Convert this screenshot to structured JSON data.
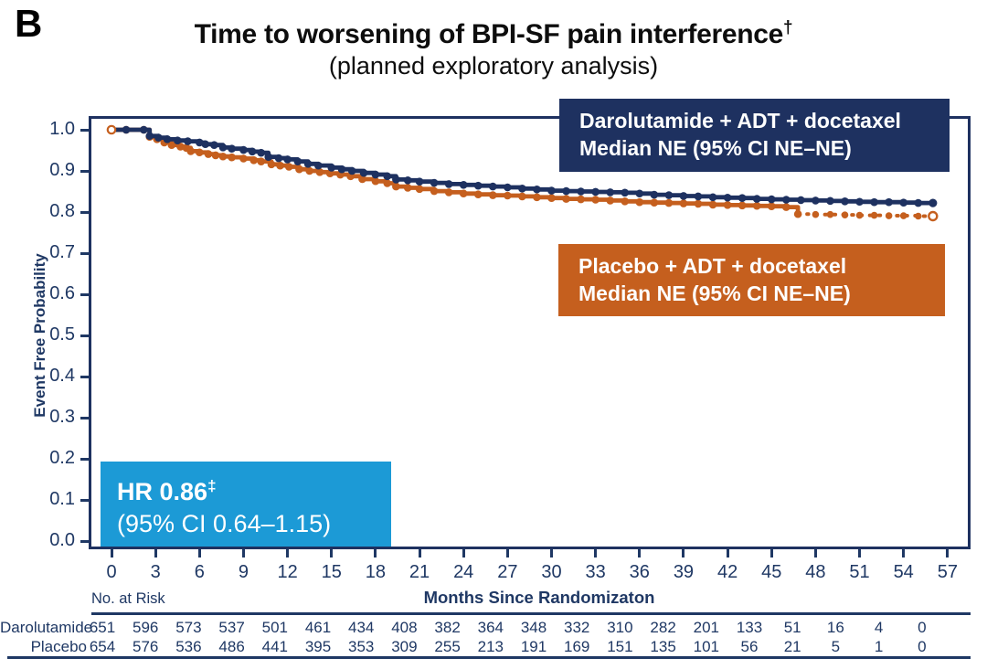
{
  "panel_label": "B",
  "header": {
    "title": "Time to worsening of BPI-SF pain interference",
    "title_sup": "†",
    "subtitle": "(planned exploratory analysis)"
  },
  "colors": {
    "navy": "#1e3160",
    "orange": "#c55f1e",
    "sky_blue": "#1c9ad6",
    "axis_text": "#1f3864",
    "background": "#ffffff"
  },
  "y_axis": {
    "label": "Event Free Probability",
    "ticks": [
      "1.0",
      "0.9",
      "0.8",
      "0.7",
      "0.6",
      "0.5",
      "0.4",
      "0.3",
      "0.2",
      "0.1",
      "0.0"
    ]
  },
  "x_axis": {
    "label": "Months Since Randomizaton",
    "ticks": [
      0,
      3,
      6,
      9,
      12,
      15,
      18,
      21,
      24,
      27,
      30,
      33,
      36,
      39,
      42,
      45,
      48,
      51,
      54,
      57
    ]
  },
  "legends": {
    "daro": {
      "line1": "Darolutamide + ADT + docetaxel",
      "line2": "Median NE (95% CI NE–NE)"
    },
    "placebo": {
      "line1": "Placebo + ADT + docetaxel",
      "line2": "Median NE (95% CI NE–NE)"
    }
  },
  "hr_box": {
    "line1": "HR 0.86",
    "line1_sup": "‡",
    "line2": "(95% CI 0.64–1.15)"
  },
  "risk_table": {
    "caption": "No. at Risk",
    "months": [
      0,
      3,
      6,
      9,
      12,
      15,
      18,
      21,
      24,
      27,
      30,
      33,
      36,
      39,
      42,
      45,
      48,
      51,
      54,
      57
    ],
    "rows": [
      {
        "label": "Darolutamide",
        "values": [
          651,
          596,
          573,
          537,
          501,
          461,
          434,
          408,
          382,
          364,
          348,
          332,
          310,
          282,
          201,
          133,
          51,
          16,
          4,
          0
        ]
      },
      {
        "label": "Placebo",
        "values": [
          654,
          576,
          536,
          486,
          441,
          395,
          353,
          309,
          255,
          213,
          191,
          169,
          151,
          135,
          101,
          56,
          21,
          5,
          1,
          0
        ]
      }
    ]
  },
  "chart_data": {
    "type": "line",
    "subtype": "kaplan-meier-step",
    "title": "Time to worsening of BPI-SF pain interference† (planned exploratory analysis)",
    "xlabel": "Months Since Randomizaton",
    "ylabel": "Event Free Probability",
    "xlim": [
      0,
      58.5
    ],
    "ylim": [
      0.0,
      1.0
    ],
    "grid": false,
    "hazard_ratio": "0.86",
    "hazard_ratio_ci": "0.64–1.15",
    "series": [
      {
        "name": "Darolutamide + ADT + docetaxel",
        "color": "#1e3160",
        "median": "NE",
        "median_ci": "NE–NE",
        "line_style": "solid",
        "end_marker": "filled",
        "points": [
          [
            0,
            1
          ],
          [
            1,
            1
          ],
          [
            2.2,
            1
          ],
          [
            2.6,
            0.985
          ],
          [
            3.2,
            0.981
          ],
          [
            3.8,
            0.977
          ],
          [
            4.5,
            0.974
          ],
          [
            5.2,
            0.972
          ],
          [
            6,
            0.969
          ],
          [
            6.4,
            0.965
          ],
          [
            7,
            0.963
          ],
          [
            7.6,
            0.957
          ],
          [
            8.2,
            0.954
          ],
          [
            9,
            0.951
          ],
          [
            9.6,
            0.947
          ],
          [
            10.2,
            0.944
          ],
          [
            10.7,
            0.934
          ],
          [
            11.4,
            0.931
          ],
          [
            12,
            0.928
          ],
          [
            12.7,
            0.923
          ],
          [
            13.4,
            0.917
          ],
          [
            14.1,
            0.913
          ],
          [
            15,
            0.908
          ],
          [
            15.7,
            0.904
          ],
          [
            16.4,
            0.9
          ],
          [
            17.2,
            0.895
          ],
          [
            18,
            0.891
          ],
          [
            18.8,
            0.887
          ],
          [
            19.4,
            0.879
          ],
          [
            20.2,
            0.877
          ],
          [
            21,
            0.874
          ],
          [
            22,
            0.871
          ],
          [
            23,
            0.868
          ],
          [
            24,
            0.866
          ],
          [
            25,
            0.864
          ],
          [
            26,
            0.862
          ],
          [
            27,
            0.86
          ],
          [
            28,
            0.857
          ],
          [
            29,
            0.855
          ],
          [
            30,
            0.852
          ],
          [
            31,
            0.851
          ],
          [
            32,
            0.85
          ],
          [
            33,
            0.849
          ],
          [
            34,
            0.848
          ],
          [
            35,
            0.847
          ],
          [
            36,
            0.845
          ],
          [
            37,
            0.842
          ],
          [
            38,
            0.841
          ],
          [
            39,
            0.839
          ],
          [
            40,
            0.838
          ],
          [
            41,
            0.836
          ],
          [
            42,
            0.835
          ],
          [
            43,
            0.834
          ],
          [
            44,
            0.832
          ],
          [
            45,
            0.831
          ],
          [
            46,
            0.83
          ],
          [
            47,
            0.829
          ],
          [
            48,
            0.828
          ],
          [
            49,
            0.827
          ],
          [
            50,
            0.826
          ],
          [
            51,
            0.825
          ],
          [
            52,
            0.824
          ],
          [
            53,
            0.824
          ],
          [
            54,
            0.823
          ],
          [
            55,
            0.822
          ],
          [
            56,
            0.822
          ]
        ]
      },
      {
        "name": "Placebo + ADT + docetaxel",
        "color": "#c55f1e",
        "median": "NE",
        "median_ci": "NE–NE",
        "line_style": "solid-then-dashed",
        "dashed_from": 46.8,
        "start_marker": "open",
        "end_marker": "open",
        "points": [
          [
            0,
            1
          ],
          [
            1,
            1
          ],
          [
            2.2,
            1
          ],
          [
            2.6,
            0.983
          ],
          [
            3.1,
            0.977
          ],
          [
            3.6,
            0.969
          ],
          [
            4.1,
            0.963
          ],
          [
            4.7,
            0.959
          ],
          [
            5.1,
            0.956
          ],
          [
            5.4,
            0.948
          ],
          [
            6,
            0.945
          ],
          [
            6.6,
            0.941
          ],
          [
            7.1,
            0.938
          ],
          [
            7.6,
            0.935
          ],
          [
            8.2,
            0.933
          ],
          [
            9,
            0.93
          ],
          [
            9.7,
            0.926
          ],
          [
            10.2,
            0.923
          ],
          [
            10.9,
            0.916
          ],
          [
            11.5,
            0.913
          ],
          [
            12.1,
            0.91
          ],
          [
            12.8,
            0.904
          ],
          [
            13.5,
            0.9
          ],
          [
            14.2,
            0.897
          ],
          [
            14.9,
            0.894
          ],
          [
            15.6,
            0.891
          ],
          [
            16.3,
            0.887
          ],
          [
            17.1,
            0.88
          ],
          [
            18,
            0.875
          ],
          [
            18.8,
            0.87
          ],
          [
            19.4,
            0.862
          ],
          [
            20.2,
            0.859
          ],
          [
            21,
            0.856
          ],
          [
            22,
            0.851
          ],
          [
            23,
            0.848
          ],
          [
            24,
            0.845
          ],
          [
            25,
            0.843
          ],
          [
            26,
            0.841
          ],
          [
            27,
            0.84
          ],
          [
            28,
            0.838
          ],
          [
            29,
            0.836
          ],
          [
            30,
            0.834
          ],
          [
            31,
            0.832
          ],
          [
            32,
            0.831
          ],
          [
            33,
            0.83
          ],
          [
            34,
            0.828
          ],
          [
            35,
            0.826
          ],
          [
            36,
            0.824
          ],
          [
            37,
            0.823
          ],
          [
            38,
            0.822
          ],
          [
            39,
            0.821
          ],
          [
            40,
            0.82
          ],
          [
            41,
            0.818
          ],
          [
            42,
            0.817
          ],
          [
            43,
            0.816
          ],
          [
            44,
            0.815
          ],
          [
            45,
            0.814
          ],
          [
            46,
            0.812
          ],
          [
            46.8,
            0.795
          ],
          [
            48,
            0.794
          ],
          [
            49,
            0.794
          ],
          [
            50,
            0.793
          ],
          [
            51,
            0.792
          ],
          [
            52,
            0.792
          ],
          [
            53,
            0.791
          ],
          [
            54,
            0.791
          ],
          [
            55,
            0.79
          ],
          [
            56,
            0.79
          ]
        ]
      }
    ]
  }
}
